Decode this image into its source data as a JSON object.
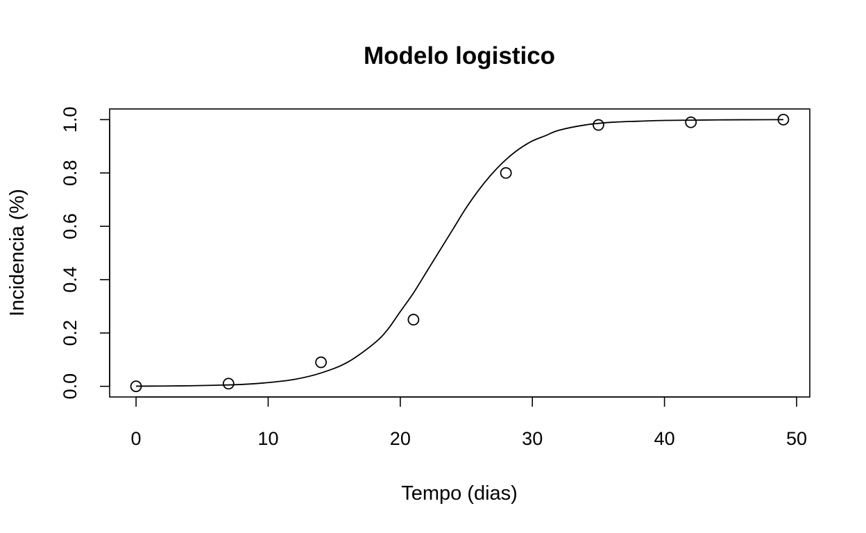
{
  "chart_data": {
    "type": "scatter",
    "title": "Modelo logistico",
    "xlabel": "Tempo (dias)",
    "ylabel": "Incidencia (%)",
    "xlim": [
      -2,
      51
    ],
    "ylim": [
      -0.04,
      1.04
    ],
    "x_ticks": [
      0,
      10,
      20,
      30,
      40,
      50
    ],
    "x_tick_labels": [
      "0",
      "10",
      "20",
      "30",
      "40",
      "50"
    ],
    "y_ticks": [
      0,
      0.2,
      0.4,
      0.6,
      0.8,
      1
    ],
    "y_tick_labels": [
      "0.0",
      "0.2",
      "0.4",
      "0.6",
      "0.8",
      "1.0"
    ],
    "grid": false,
    "legend": "none",
    "series": [
      {
        "kind": "points",
        "marker": "open-circle",
        "x": [
          0,
          7,
          14,
          21,
          28,
          35,
          42,
          49
        ],
        "y": [
          0.0,
          0.01,
          0.09,
          0.25,
          0.8,
          0.98,
          0.99,
          1.0
        ]
      },
      {
        "kind": "fitted-line",
        "model": "logistic",
        "x": [
          0,
          2,
          4,
          6,
          8,
          10,
          12,
          14,
          16,
          18,
          19,
          20,
          21,
          22,
          23,
          24,
          25,
          26,
          27,
          28,
          29,
          30,
          31,
          32,
          34,
          36,
          38,
          40,
          42,
          44,
          46,
          49
        ],
        "y": [
          0.0005,
          0.001,
          0.002,
          0.004,
          0.007,
          0.014,
          0.026,
          0.05,
          0.09,
          0.16,
          0.21,
          0.28,
          0.35,
          0.43,
          0.51,
          0.59,
          0.67,
          0.74,
          0.8,
          0.85,
          0.89,
          0.92,
          0.94,
          0.96,
          0.98,
          0.99,
          0.994,
          0.997,
          0.998,
          0.999,
          0.9995,
          1.0
        ]
      }
    ],
    "colors": {
      "points": "#000000",
      "line": "#000000",
      "frame": "#000000",
      "background": "#ffffff"
    }
  }
}
